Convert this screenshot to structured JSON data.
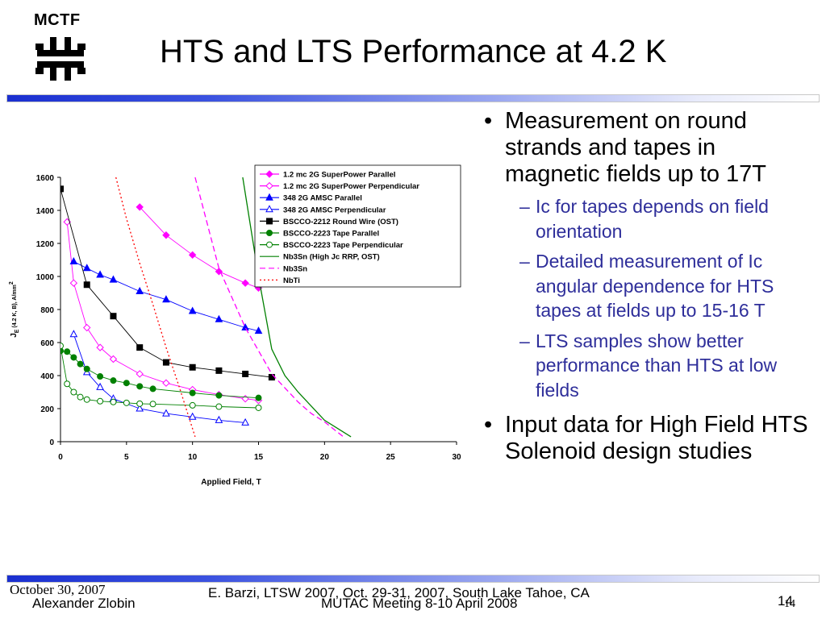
{
  "header": {
    "logo_text": "MCTF",
    "title": "HTS and LTS Performance at 4.2 K"
  },
  "bullets": [
    {
      "text": "Measurement on round strands and tapes in magnetic fields up to 17T",
      "sub": [
        "Ic for tapes depends on field orientation",
        "Detailed measurement of Ic angular dependence for HTS tapes at fields up to 15-16 T",
        "LTS samples show better performance than HTS at low fields"
      ]
    },
    {
      "text": "Input data for High Field HTS Solenoid design studies",
      "sub": []
    }
  ],
  "footer": {
    "date": "October 30, 2007",
    "author": "Alexander Zlobin",
    "conference": "E. Barzi, LTSW 2007, Oct. 29-31, 2007, South Lake Tahoe, CA",
    "meeting": "MUTAC Meeting 8-10 April 2008",
    "page_a": "14",
    "page_b": "14"
  },
  "chart_data": {
    "type": "line",
    "title": "",
    "xlabel": "Applied Field, T",
    "ylabel_parts": [
      "J",
      "E",
      " (4.2 K, B), A/mm",
      "2"
    ],
    "xlim": [
      0,
      30
    ],
    "ylim": [
      0,
      1600
    ],
    "xticks": [
      0,
      5,
      10,
      15,
      20,
      25,
      30
    ],
    "yticks": [
      0,
      200,
      400,
      600,
      800,
      1000,
      1200,
      1400,
      1600
    ],
    "grid": false,
    "legend_position": "top-right",
    "series": [
      {
        "name": "1.2 mc 2G SuperPower Parallel",
        "color": "#ff00ff",
        "marker": "diamond-filled",
        "dash": "solid",
        "x": [
          6,
          8,
          10,
          12,
          14,
          15
        ],
        "y": [
          1420,
          1250,
          1130,
          1030,
          960,
          930
        ]
      },
      {
        "name": "1.2 mc 2G SuperPower Perpendicular",
        "color": "#ff00ff",
        "marker": "diamond-open",
        "dash": "solid",
        "x": [
          0.5,
          1,
          2,
          3,
          4,
          6,
          8,
          10,
          12,
          14,
          15
        ],
        "y": [
          1330,
          960,
          690,
          570,
          500,
          410,
          355,
          315,
          285,
          260,
          250
        ]
      },
      {
        "name": "348 2G AMSC Parallel",
        "color": "#0000ff",
        "marker": "triangle-filled",
        "dash": "solid",
        "x": [
          1,
          2,
          3,
          4,
          6,
          8,
          10,
          12,
          14,
          15
        ],
        "y": [
          1090,
          1050,
          1010,
          980,
          910,
          860,
          790,
          740,
          690,
          670
        ]
      },
      {
        "name": "348 2G AMSC Perpendicular",
        "color": "#0000ff",
        "marker": "triangle-open",
        "dash": "solid",
        "x": [
          1,
          2,
          3,
          4,
          6,
          8,
          10,
          12,
          14
        ],
        "y": [
          650,
          420,
          330,
          260,
          200,
          170,
          150,
          130,
          115
        ]
      },
      {
        "name": "BSCCO-2212 Round Wire (OST)",
        "color": "#000000",
        "marker": "square-filled",
        "dash": "solid",
        "x": [
          0,
          2,
          4,
          6,
          8,
          10,
          12,
          14,
          16
        ],
        "y": [
          1530,
          950,
          760,
          570,
          480,
          450,
          430,
          410,
          390
        ]
      },
      {
        "name": "BSCCO-2223 Tape Parallel",
        "color": "#008000",
        "marker": "circle-filled",
        "dash": "solid",
        "x": [
          0,
          0.5,
          1,
          1.5,
          2,
          3,
          4,
          5,
          6,
          7,
          10,
          12,
          15
        ],
        "y": [
          550,
          545,
          510,
          470,
          440,
          395,
          370,
          355,
          335,
          320,
          295,
          280,
          265
        ]
      },
      {
        "name": "BSCCO-2223 Tape Perpendicular",
        "color": "#008000",
        "marker": "circle-open",
        "dash": "solid",
        "x": [
          0,
          0.5,
          1,
          1.5,
          2,
          3,
          4,
          5,
          6,
          7,
          10,
          12,
          15
        ],
        "y": [
          580,
          350,
          300,
          270,
          255,
          245,
          240,
          235,
          230,
          228,
          220,
          212,
          205
        ]
      },
      {
        "name": "Nb3Sn (High Jc RRP, OST)",
        "color": "#008000",
        "marker": "none",
        "dash": "solid",
        "x": [
          13.8,
          15,
          16,
          17,
          18,
          20,
          22
        ],
        "y": [
          1600,
          1000,
          560,
          400,
          300,
          130,
          30
        ]
      },
      {
        "name": "Nb3Sn",
        "color": "#ff00ff",
        "marker": "none",
        "dash": "dashed",
        "x": [
          10.2,
          12,
          14,
          16,
          18,
          19,
          20,
          21.5
        ],
        "y": [
          1600,
          1050,
          690,
          410,
          240,
          170,
          120,
          25
        ]
      },
      {
        "name": "NbTi",
        "color": "#ff0000",
        "marker": "none",
        "dash": "dotted",
        "x": [
          4.2,
          5,
          6,
          7,
          8,
          9,
          10.2
        ],
        "y": [
          1600,
          1350,
          1080,
          830,
          570,
          330,
          30
        ]
      }
    ]
  }
}
